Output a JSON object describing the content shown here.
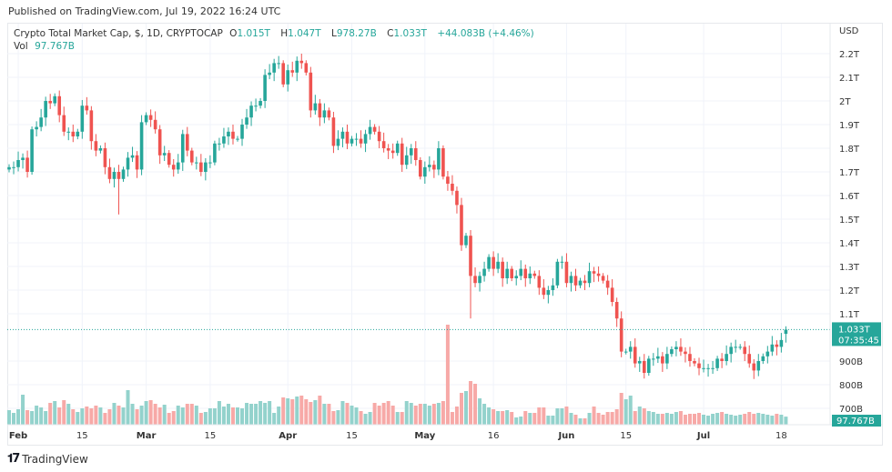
{
  "published": "Published on TradingView.com, Jul 19, 2022 16:24 UTC",
  "legend": {
    "symbol": "Crypto Total Market Cap, $, 1D, CRYPTOCAP",
    "o_label": "O",
    "o": "1.015T",
    "h_label": "H",
    "h": "1.047T",
    "l_label": "L",
    "l": "978.27B",
    "c_label": "C",
    "c": "1.033T",
    "change": "+44.083B (+4.46%)",
    "vol_label": "Vol",
    "vol": "97.767B"
  },
  "price_tag": {
    "value": "1.033T",
    "countdown": "07:35:45"
  },
  "volume_tag": "97.767B",
  "footer": {
    "brand": "TradingView",
    "logo_text": "17"
  },
  "colors": {
    "up": "#26a69a",
    "down": "#ef5350",
    "up_volume": "#93d2cc",
    "down_volume": "#f7a9a7",
    "grid": "#f0f3fa"
  },
  "chart_data": {
    "type": "candlestick",
    "title": "Crypto Total Market Cap, $, 1D, CRYPTOCAP",
    "currency_label": "USD",
    "first_date": "Jan 30",
    "last_date": "Jul 19",
    "ylim": [
      0.68,
      2.23
    ],
    "y_unit": "T",
    "y_ticks": [
      {
        "value": 2.2,
        "label": "2.2T"
      },
      {
        "value": 2.1,
        "label": "2.1T"
      },
      {
        "value": 2.0,
        "label": "2T"
      },
      {
        "value": 1.9,
        "label": "1.9T"
      },
      {
        "value": 1.8,
        "label": "1.8T"
      },
      {
        "value": 1.7,
        "label": "1.7T"
      },
      {
        "value": 1.6,
        "label": "1.6T"
      },
      {
        "value": 1.5,
        "label": "1.5T"
      },
      {
        "value": 1.4,
        "label": "1.4T"
      },
      {
        "value": 1.3,
        "label": "1.3T"
      },
      {
        "value": 1.2,
        "label": "1.2T"
      },
      {
        "value": 1.1,
        "label": "1.1T"
      },
      {
        "value": 0.9,
        "label": "900B"
      },
      {
        "value": 0.8,
        "label": "800B"
      },
      {
        "value": 0.7,
        "label": "700B"
      }
    ],
    "x_ticks": [
      {
        "index": 2,
        "label": "Feb",
        "bold": true
      },
      {
        "index": 16,
        "label": "15"
      },
      {
        "index": 30,
        "label": "Mar",
        "bold": true
      },
      {
        "index": 44,
        "label": "15"
      },
      {
        "index": 61,
        "label": "Apr",
        "bold": true
      },
      {
        "index": 75,
        "label": "15"
      },
      {
        "index": 91,
        "label": "May",
        "bold": true
      },
      {
        "index": 106,
        "label": "16"
      },
      {
        "index": 122,
        "label": "Jun",
        "bold": true
      },
      {
        "index": 135,
        "label": "15"
      },
      {
        "index": 152,
        "label": "Jul",
        "bold": true
      },
      {
        "index": 169,
        "label": "18"
      }
    ],
    "close": [
      1.72,
      1.72,
      1.75,
      1.76,
      1.7,
      1.88,
      1.89,
      1.93,
      2.0,
      1.99,
      2.02,
      1.94,
      1.87,
      1.87,
      1.85,
      1.87,
      1.98,
      1.96,
      1.83,
      1.79,
      1.8,
      1.72,
      1.67,
      1.7,
      1.67,
      1.71,
      1.76,
      1.77,
      1.71,
      1.91,
      1.94,
      1.92,
      1.88,
      1.77,
      1.78,
      1.73,
      1.71,
      1.74,
      1.86,
      1.79,
      1.74,
      1.74,
      1.7,
      1.74,
      1.74,
      1.82,
      1.82,
      1.85,
      1.87,
      1.84,
      1.84,
      1.9,
      1.93,
      1.98,
      1.98,
      2.0,
      2.11,
      2.12,
      2.16,
      2.16,
      2.07,
      2.13,
      2.12,
      2.17,
      2.16,
      2.12,
      1.96,
      1.99,
      1.93,
      1.96,
      1.93,
      1.81,
      1.84,
      1.87,
      1.82,
      1.84,
      1.84,
      1.82,
      1.86,
      1.89,
      1.87,
      1.83,
      1.8,
      1.79,
      1.78,
      1.82,
      1.73,
      1.77,
      1.8,
      1.75,
      1.68,
      1.72,
      1.73,
      1.71,
      1.8,
      1.68,
      1.65,
      1.62,
      1.56,
      1.39,
      1.43,
      1.26,
      1.23,
      1.26,
      1.29,
      1.34,
      1.29,
      1.32,
      1.25,
      1.29,
      1.25,
      1.26,
      1.29,
      1.25,
      1.27,
      1.26,
      1.21,
      1.18,
      1.2,
      1.22,
      1.32,
      1.32,
      1.23,
      1.26,
      1.22,
      1.24,
      1.23,
      1.28,
      1.27,
      1.26,
      1.24,
      1.21,
      1.15,
      1.08,
      0.94,
      0.94,
      0.96,
      0.89,
      0.9,
      0.85,
      0.91,
      0.91,
      0.92,
      0.89,
      0.93,
      0.95,
      0.96,
      0.94,
      0.93,
      0.9,
      0.89,
      0.87,
      0.87,
      0.87,
      0.87,
      0.91,
      0.9,
      0.93,
      0.96,
      0.96,
      0.96,
      0.93,
      0.89,
      0.86,
      0.9,
      0.92,
      0.94,
      0.97,
      0.96,
      0.989,
      1.033
    ],
    "overrides": [
      {
        "index": 24,
        "low": 1.52
      },
      {
        "index": 101,
        "low": 1.08
      },
      {
        "index": 170,
        "open": 1.015,
        "high": 1.047,
        "low": 0.978
      }
    ],
    "volume_unit": "B",
    "volume": [
      176,
      143,
      187,
      363,
      176,
      165,
      231,
      209,
      165,
      264,
      286,
      209,
      297,
      253,
      187,
      154,
      198,
      220,
      198,
      231,
      209,
      143,
      187,
      264,
      231,
      209,
      418,
      253,
      187,
      231,
      286,
      297,
      253,
      209,
      242,
      143,
      165,
      231,
      209,
      253,
      253,
      231,
      143,
      154,
      198,
      198,
      286,
      220,
      253,
      209,
      209,
      198,
      264,
      253,
      253,
      286,
      264,
      286,
      143,
      220,
      330,
      319,
      308,
      341,
      352,
      308,
      275,
      297,
      352,
      253,
      253,
      165,
      176,
      286,
      264,
      231,
      209,
      165,
      132,
      154,
      264,
      231,
      264,
      286,
      231,
      154,
      154,
      286,
      264,
      231,
      253,
      253,
      231,
      253,
      264,
      286,
      1210,
      154,
      220,
      385,
      407,
      528,
      495,
      319,
      253,
      209,
      187,
      165,
      165,
      176,
      154,
      88,
      99,
      165,
      143,
      143,
      209,
      209,
      110,
      110,
      198,
      198,
      220,
      143,
      121,
      77,
      77,
      143,
      220,
      143,
      121,
      154,
      154,
      187,
      385,
      308,
      352,
      165,
      220,
      198,
      165,
      154,
      132,
      132,
      143,
      132,
      154,
      165,
      121,
      132,
      132,
      143,
      121,
      110,
      132,
      143,
      154,
      132,
      121,
      110,
      121,
      132,
      154,
      132,
      143,
      132,
      121,
      110,
      132,
      121,
      97.767
    ]
  }
}
